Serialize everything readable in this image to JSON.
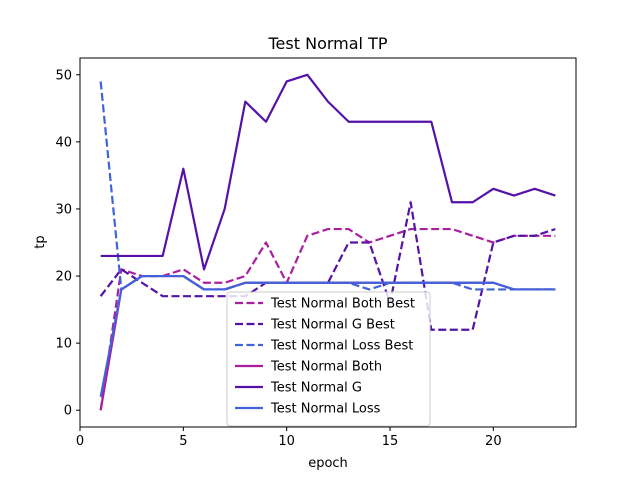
{
  "chart_data": {
    "type": "line",
    "title": "Test Normal TP",
    "xlabel": "epoch",
    "ylabel": "tp",
    "xlim": [
      0,
      24
    ],
    "ylim": [
      -2.5,
      52.5
    ],
    "xticks": [
      0,
      5,
      10,
      15,
      20
    ],
    "yticks": [
      0,
      10,
      20,
      30,
      40,
      50
    ],
    "grid": false,
    "legend_position": "lower-center",
    "x": [
      1,
      2,
      3,
      4,
      5,
      6,
      7,
      8,
      9,
      10,
      11,
      12,
      13,
      14,
      15,
      16,
      17,
      18,
      19,
      20,
      21,
      22,
      23
    ],
    "series": [
      {
        "name": "Test Normal Both Best",
        "color": "#aa1f9e",
        "dashed": true,
        "values": [
          0,
          21,
          20,
          20,
          21,
          19,
          19,
          20,
          25,
          19,
          26,
          27,
          27,
          25,
          26,
          27,
          27,
          27,
          26,
          25,
          26,
          26,
          26
        ]
      },
      {
        "name": "Test Normal G Best",
        "color": "#5412a8",
        "dashed": true,
        "values": [
          17,
          21,
          19,
          17,
          17,
          17,
          17,
          17,
          19,
          19,
          19,
          19,
          25,
          25,
          16,
          31,
          12,
          12,
          12,
          25,
          26,
          26,
          27
        ]
      },
      {
        "name": "Test Normal Loss Best",
        "color": "#4062db",
        "dashed": true,
        "values": [
          49,
          18,
          20,
          20,
          20,
          18,
          18,
          19,
          19,
          19,
          19,
          19,
          19,
          18,
          19,
          19,
          19,
          19,
          18,
          18,
          18,
          18,
          18
        ]
      },
      {
        "name": "Test Normal Both",
        "color": "#aa1f9e",
        "dashed": false,
        "values": [
          0,
          18,
          20,
          20,
          20,
          18,
          18,
          19,
          19,
          19,
          19,
          19,
          19,
          19,
          19,
          19,
          19,
          19,
          19,
          19,
          18,
          18,
          18
        ]
      },
      {
        "name": "Test Normal G",
        "color": "#5412a8",
        "dashed": false,
        "values": [
          23,
          23,
          23,
          23,
          36,
          21,
          30,
          46,
          43,
          49,
          50,
          46,
          43,
          43,
          43,
          43,
          43,
          31,
          31,
          33,
          32,
          33,
          32
        ]
      },
      {
        "name": "Test Normal Loss",
        "color": "#4062db",
        "dashed": false,
        "values": [
          2,
          18,
          20,
          20,
          20,
          18,
          18,
          19,
          19,
          19,
          19,
          19,
          19,
          19,
          19,
          19,
          19,
          19,
          19,
          19,
          18,
          18,
          18
        ]
      }
    ]
  }
}
